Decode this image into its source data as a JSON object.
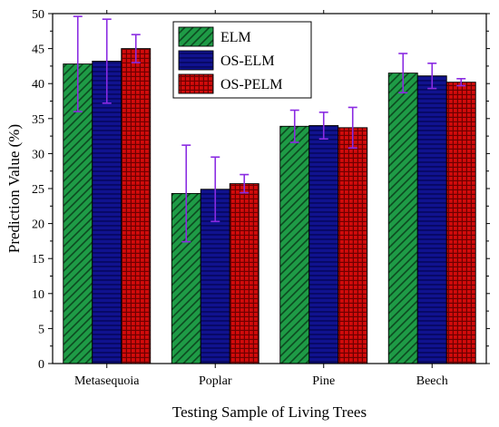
{
  "chart_data": {
    "type": "bar",
    "title": "",
    "xlabel": "Testing Sample of Living Trees",
    "ylabel": "Prediction Value (%)",
    "ylim": [
      0,
      50
    ],
    "yticks": [
      0,
      5,
      10,
      15,
      20,
      25,
      30,
      35,
      40,
      45,
      50
    ],
    "grid": false,
    "legend_position": "top-center",
    "categories": [
      "Metasequoia",
      "Poplar",
      "Pine",
      "Beech"
    ],
    "series": [
      {
        "name": "ELM",
        "color": "#1e9b46",
        "pattern": "diagonal-hatch",
        "values": [
          42.8,
          24.3,
          33.9,
          41.5
        ],
        "error": [
          6.8,
          6.9,
          2.3,
          2.8
        ]
      },
      {
        "name": "OS-ELM",
        "color": "#10128f",
        "pattern": "horizontal-lines",
        "values": [
          43.2,
          24.9,
          34.0,
          41.1
        ],
        "error": [
          6.0,
          4.6,
          1.9,
          1.8
        ]
      },
      {
        "name": "OS-PELM",
        "color": "#d30b0b",
        "pattern": "grid",
        "values": [
          45.0,
          25.7,
          33.7,
          40.2
        ],
        "error": [
          2.0,
          1.3,
          2.9,
          0.5
        ]
      }
    ],
    "error_bar_color": "#8a2be2"
  }
}
